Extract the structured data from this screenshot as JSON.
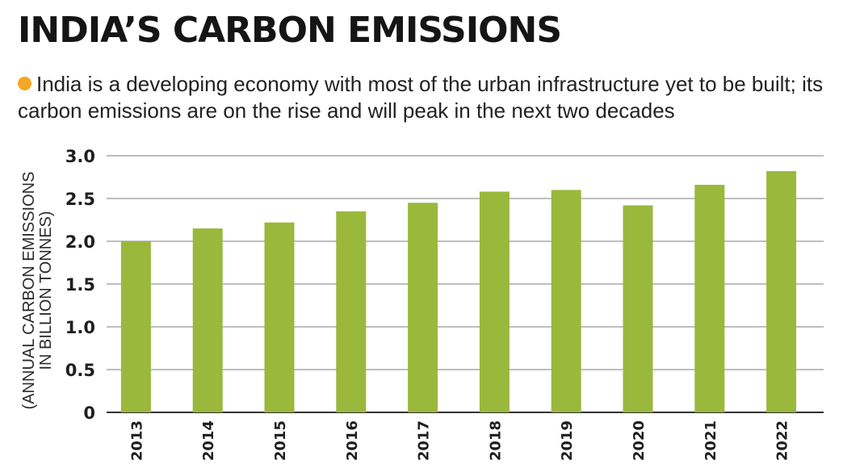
{
  "title": "INDIA’S CARBON EMISSIONS",
  "subtitle": "India is a developing economy with most of the urban infrastructure yet to be built; its carbon emissions are on the rise and will peak in the next two decades",
  "colors": {
    "bullet": "#f5a623",
    "bar": "#9ab83c",
    "grid": "#a9a9a9",
    "axis": "#333333"
  },
  "chart_data": {
    "type": "bar",
    "title": "",
    "xlabel": "",
    "ylabel_lines": [
      "(ANNUAL CARBON EMISSIONS",
      "IN BILLION TONNES)"
    ],
    "categories": [
      "2013",
      "2014",
      "2015",
      "2016",
      "2017",
      "2018",
      "2019",
      "2020",
      "2021",
      "2022"
    ],
    "values": [
      2.0,
      2.15,
      2.22,
      2.35,
      2.45,
      2.58,
      2.6,
      2.42,
      2.66,
      2.82
    ],
    "ylim": [
      0,
      3.0
    ],
    "yticks": [
      "0",
      "0.5",
      "1.0",
      "1.5",
      "2.0",
      "2.5",
      "3.0"
    ],
    "grid": true,
    "legend": "none"
  }
}
